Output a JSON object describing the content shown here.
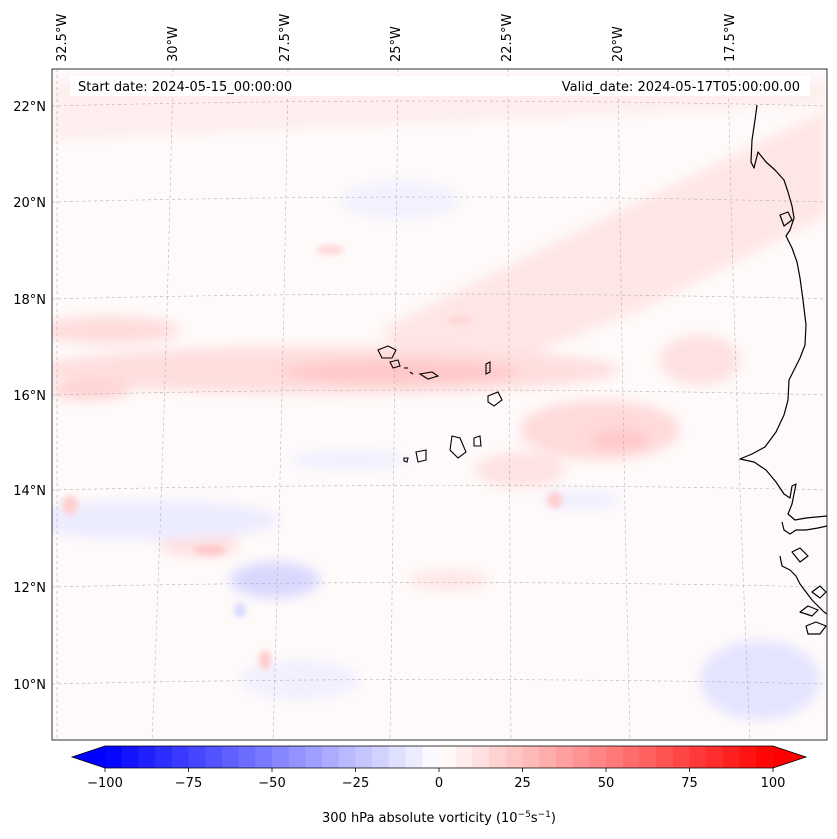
{
  "map": {
    "start_label": "Start date: 2024-05-15_00:00:00",
    "valid_label": "Valid_date: 2024-05-17T05:00:00.00",
    "lon_labels": [
      "32.5°W",
      "30°W",
      "27.5°W",
      "25°W",
      "22.5°W",
      "20°W",
      "17.5°W"
    ],
    "lat_labels": [
      "22°N",
      "20°N",
      "18°N",
      "16°N",
      "14°N",
      "12°N",
      "10°N"
    ],
    "field": "300 hPa absolute vorticity",
    "units": "10^-5 s^-1",
    "grid": true,
    "coastline_color": "#000000"
  },
  "colorbar": {
    "label_main": "300 hPa absolute vorticity (10",
    "label_exp1": "−5",
    "label_mid": "s",
    "label_exp2": "−1",
    "label_end": ")",
    "ticks": [
      "−100",
      "−75",
      "−50",
      "−25",
      "0",
      "25",
      "50",
      "75",
      "100"
    ],
    "tick_values": [
      -100,
      -75,
      -50,
      -25,
      0,
      25,
      50,
      75,
      100
    ],
    "min": -100,
    "max": 100,
    "levels": 40,
    "colormap": "bwr",
    "extend": "both"
  }
}
